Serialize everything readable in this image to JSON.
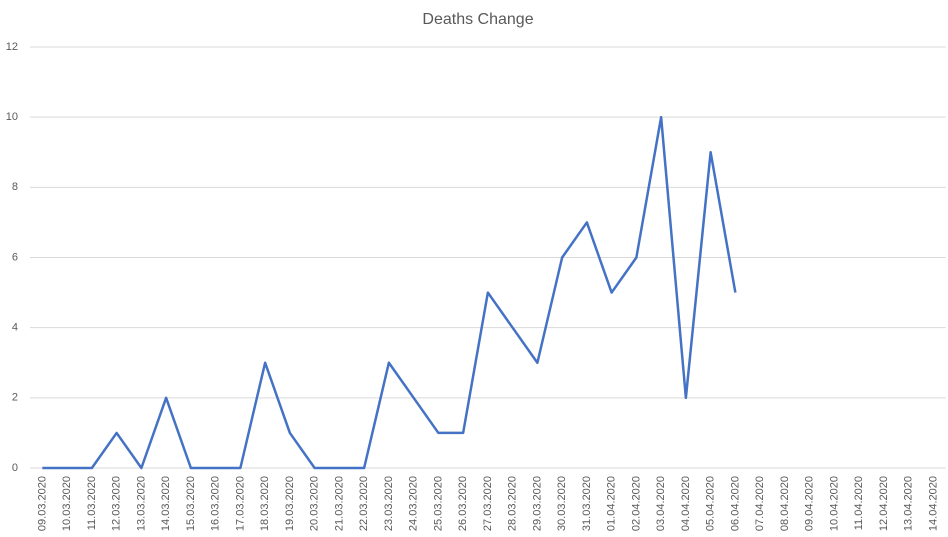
{
  "chart_data": {
    "type": "line",
    "title": "Deaths Change",
    "categories": [
      "09.03.2020",
      "10.03.2020",
      "11.03.2020",
      "12.03.2020",
      "13.03.2020",
      "14.03.2020",
      "15.03.2020",
      "16.03.2020",
      "17.03.2020",
      "18.03.2020",
      "19.03.2020",
      "20.03.2020",
      "21.03.2020",
      "22.03.2020",
      "23.03.2020",
      "24.03.2020",
      "25.03.2020",
      "26.03.2020",
      "27.03.2020",
      "28.03.2020",
      "29.03.2020",
      "30.03.2020",
      "31.03.2020",
      "01.04.2020",
      "02.04.2020",
      "03.04.2020",
      "04.04.2020",
      "05.04.2020",
      "06.04.2020",
      "07.04.2020",
      "08.04.2020",
      "09.04.2020",
      "10.04.2020",
      "11.04.2020",
      "12.04.2020",
      "13.04.2020",
      "14.04.2020"
    ],
    "series": [
      {
        "name": "Deaths Change",
        "color": "#4472c4",
        "values": [
          0,
          0,
          0,
          1,
          0,
          2,
          0,
          0,
          0,
          3,
          1,
          0,
          0,
          0,
          3,
          2,
          1,
          1,
          5,
          4,
          3,
          6,
          7,
          5,
          6,
          10,
          2,
          9,
          5,
          null,
          null,
          null,
          null,
          null,
          null,
          null,
          null
        ]
      }
    ],
    "ylim": [
      0,
      12
    ],
    "yticks": [
      0,
      2,
      4,
      6,
      8,
      10,
      12
    ],
    "grid": true
  }
}
